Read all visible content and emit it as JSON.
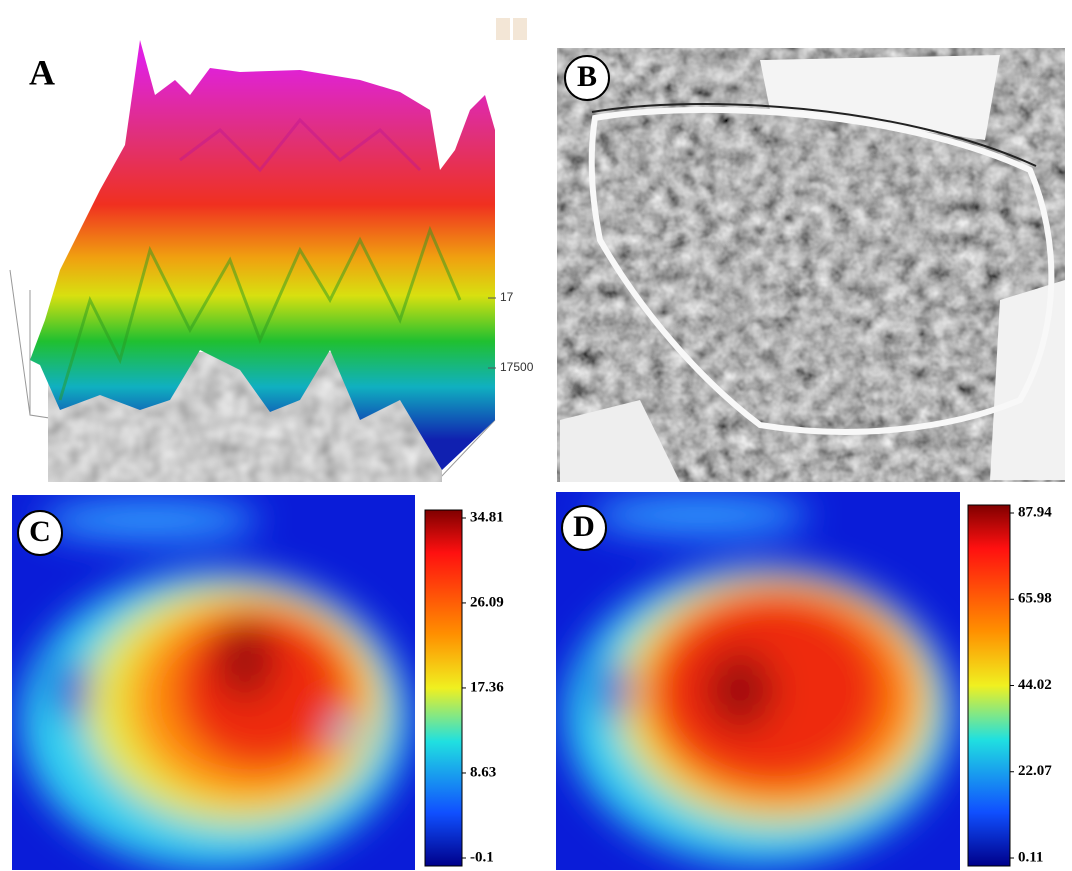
{
  "panels": [
    {
      "label": "A",
      "axis_labels": [
        "17",
        "17500"
      ]
    },
    {
      "label": "B"
    },
    {
      "label": "C",
      "colorbar": {
        "lim": [
          -0.1,
          34.81
        ],
        "ticks": [
          34.81,
          26.09,
          17.36,
          8.63,
          -0.1
        ]
      }
    },
    {
      "label": "D",
      "colorbar": {
        "lim": [
          0.11,
          87.94
        ],
        "ticks": [
          87.94,
          65.98,
          44.02,
          22.07,
          0.11
        ]
      }
    }
  ]
}
